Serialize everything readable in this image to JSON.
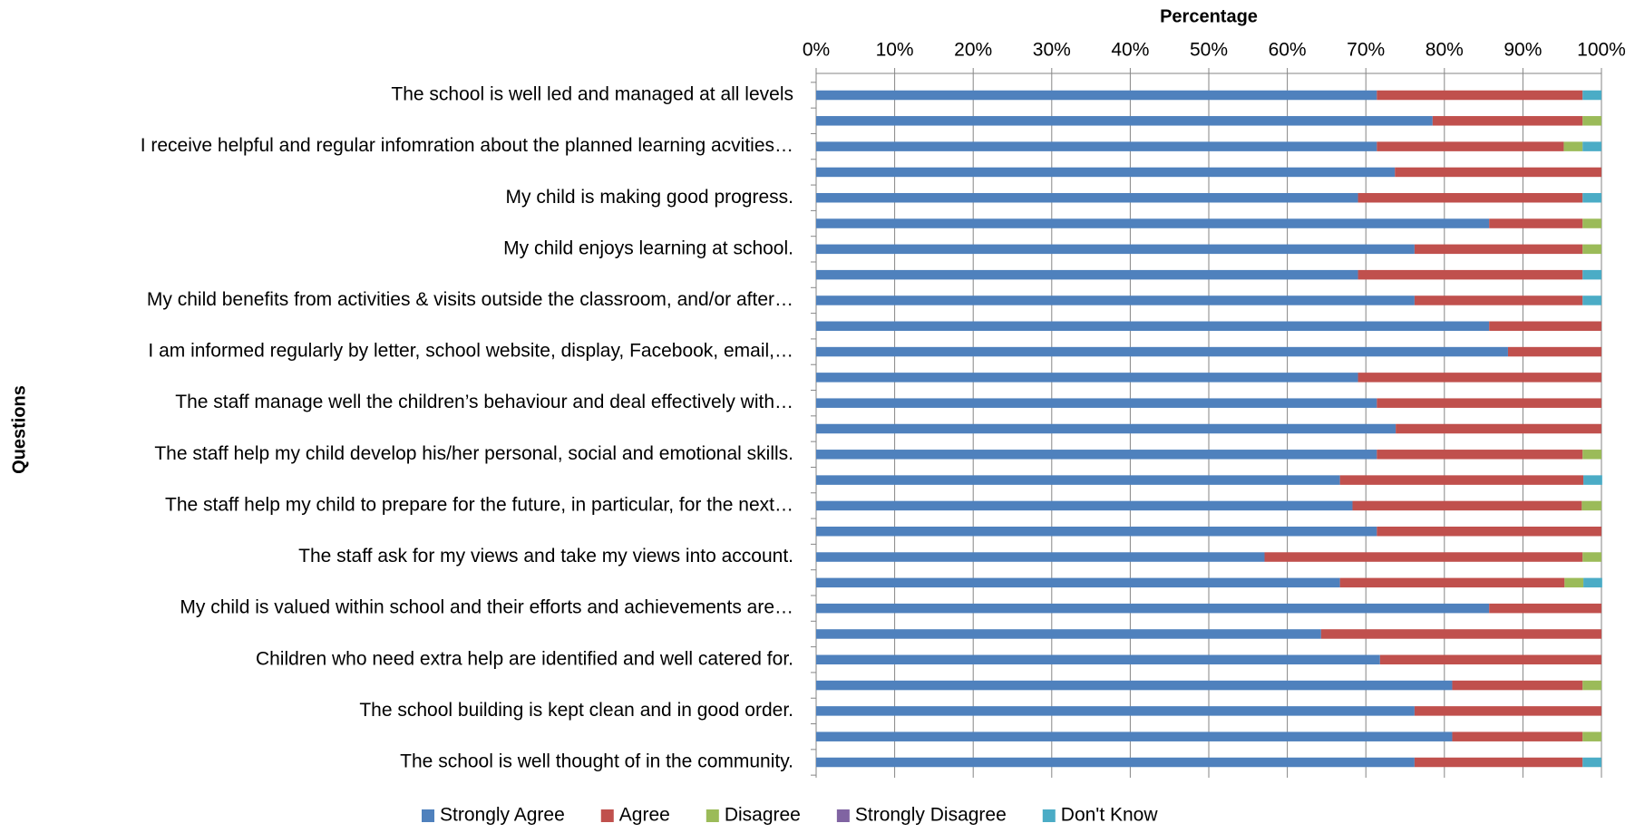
{
  "chart_data": {
    "type": "stacked_bar_horizontal",
    "x_label": "Percentage",
    "y_label": "Questions",
    "categories": [
      "The school is well led and managed at all levels",
      null,
      "I receive helpful and regular infomration about the planned learning acvities…",
      null,
      "My child is making good progress.",
      null,
      "My child enjoys learning at school.",
      null,
      "My child benefits from activities & visits outside the classroom, and/or after…",
      null,
      "I am informed regularly by letter, school website, display, Facebook, email,…",
      null,
      "The staff manage well the children’s behaviour and deal effectively with…",
      null,
      "The staff help my child develop his/her personal, social and emotional skills.",
      null,
      "The staff help my child to prepare for the future, in particular, for the next…",
      null,
      "The staff ask for my views and take my views into account.",
      null,
      "My child is valued within school and their efforts and achievements are…",
      null,
      "Children who need extra help are identified and well catered for.",
      null,
      "The school building is kept clean and in good order.",
      null,
      "The school is well thought of in the community."
    ],
    "series": [
      {
        "name": "Strongly Agree",
        "color": "#4f81bd",
        "values": [
          71.4,
          78.5,
          71.4,
          73.7,
          69,
          85.7,
          76.2,
          69,
          76.2,
          85.7,
          88.1,
          69,
          71.4,
          73.8,
          71.4,
          66.7,
          68.3,
          71.4,
          57.1,
          66.7,
          85.7,
          64.3,
          71.8,
          81,
          76.2,
          81,
          76.2
        ]
      },
      {
        "name": "Agree",
        "color": "#c0504d",
        "values": [
          26.2,
          19.1,
          23.8,
          26.3,
          28.6,
          11.9,
          21.4,
          28.6,
          21.4,
          14.3,
          11.9,
          31,
          28.6,
          26.2,
          26.2,
          31,
          29.2,
          28.6,
          40.5,
          28.6,
          14.3,
          35.7,
          28.2,
          16.6,
          23.8,
          16.6,
          21.4
        ]
      },
      {
        "name": "Disagree",
        "color": "#9bbb59",
        "values": [
          0,
          2.4,
          2.4,
          0,
          0,
          2.4,
          2.4,
          0,
          0,
          0,
          0,
          0,
          0,
          0,
          2.4,
          0,
          2.5,
          0,
          2.4,
          2.4,
          0,
          0,
          0,
          2.4,
          0,
          2.4,
          0
        ]
      },
      {
        "name": "Strongly Disagree",
        "color": "#8064a2",
        "values": [
          0,
          0,
          0,
          0,
          0,
          0,
          0,
          0,
          0,
          0,
          0,
          0,
          0,
          0,
          0,
          0,
          0,
          0,
          0,
          0,
          0,
          0,
          0,
          0,
          0,
          0,
          0
        ]
      },
      {
        "name": "Don't Know",
        "color": "#4bacc6",
        "values": [
          2.4,
          0,
          2.4,
          0,
          2.4,
          0,
          0,
          2.4,
          2.4,
          0,
          0,
          0,
          0,
          0,
          0,
          2.4,
          0,
          0,
          0,
          2.4,
          0,
          0,
          0,
          0,
          0,
          0,
          2.4
        ]
      }
    ],
    "xlim": [
      0,
      100
    ],
    "xticks": [
      {
        "value": 0,
        "label": "0%"
      },
      {
        "value": 10,
        "label": "10%"
      },
      {
        "value": 20,
        "label": "20%"
      },
      {
        "value": 30,
        "label": "30%"
      },
      {
        "value": 40,
        "label": "40%"
      },
      {
        "value": 50,
        "label": "50%"
      },
      {
        "value": 60,
        "label": "60%"
      },
      {
        "value": 70,
        "label": "70%"
      },
      {
        "value": 80,
        "label": "80%"
      },
      {
        "value": 90,
        "label": "90%"
      },
      {
        "value": 100,
        "label": "100%"
      }
    ],
    "grid": true,
    "legend": "bottom"
  }
}
